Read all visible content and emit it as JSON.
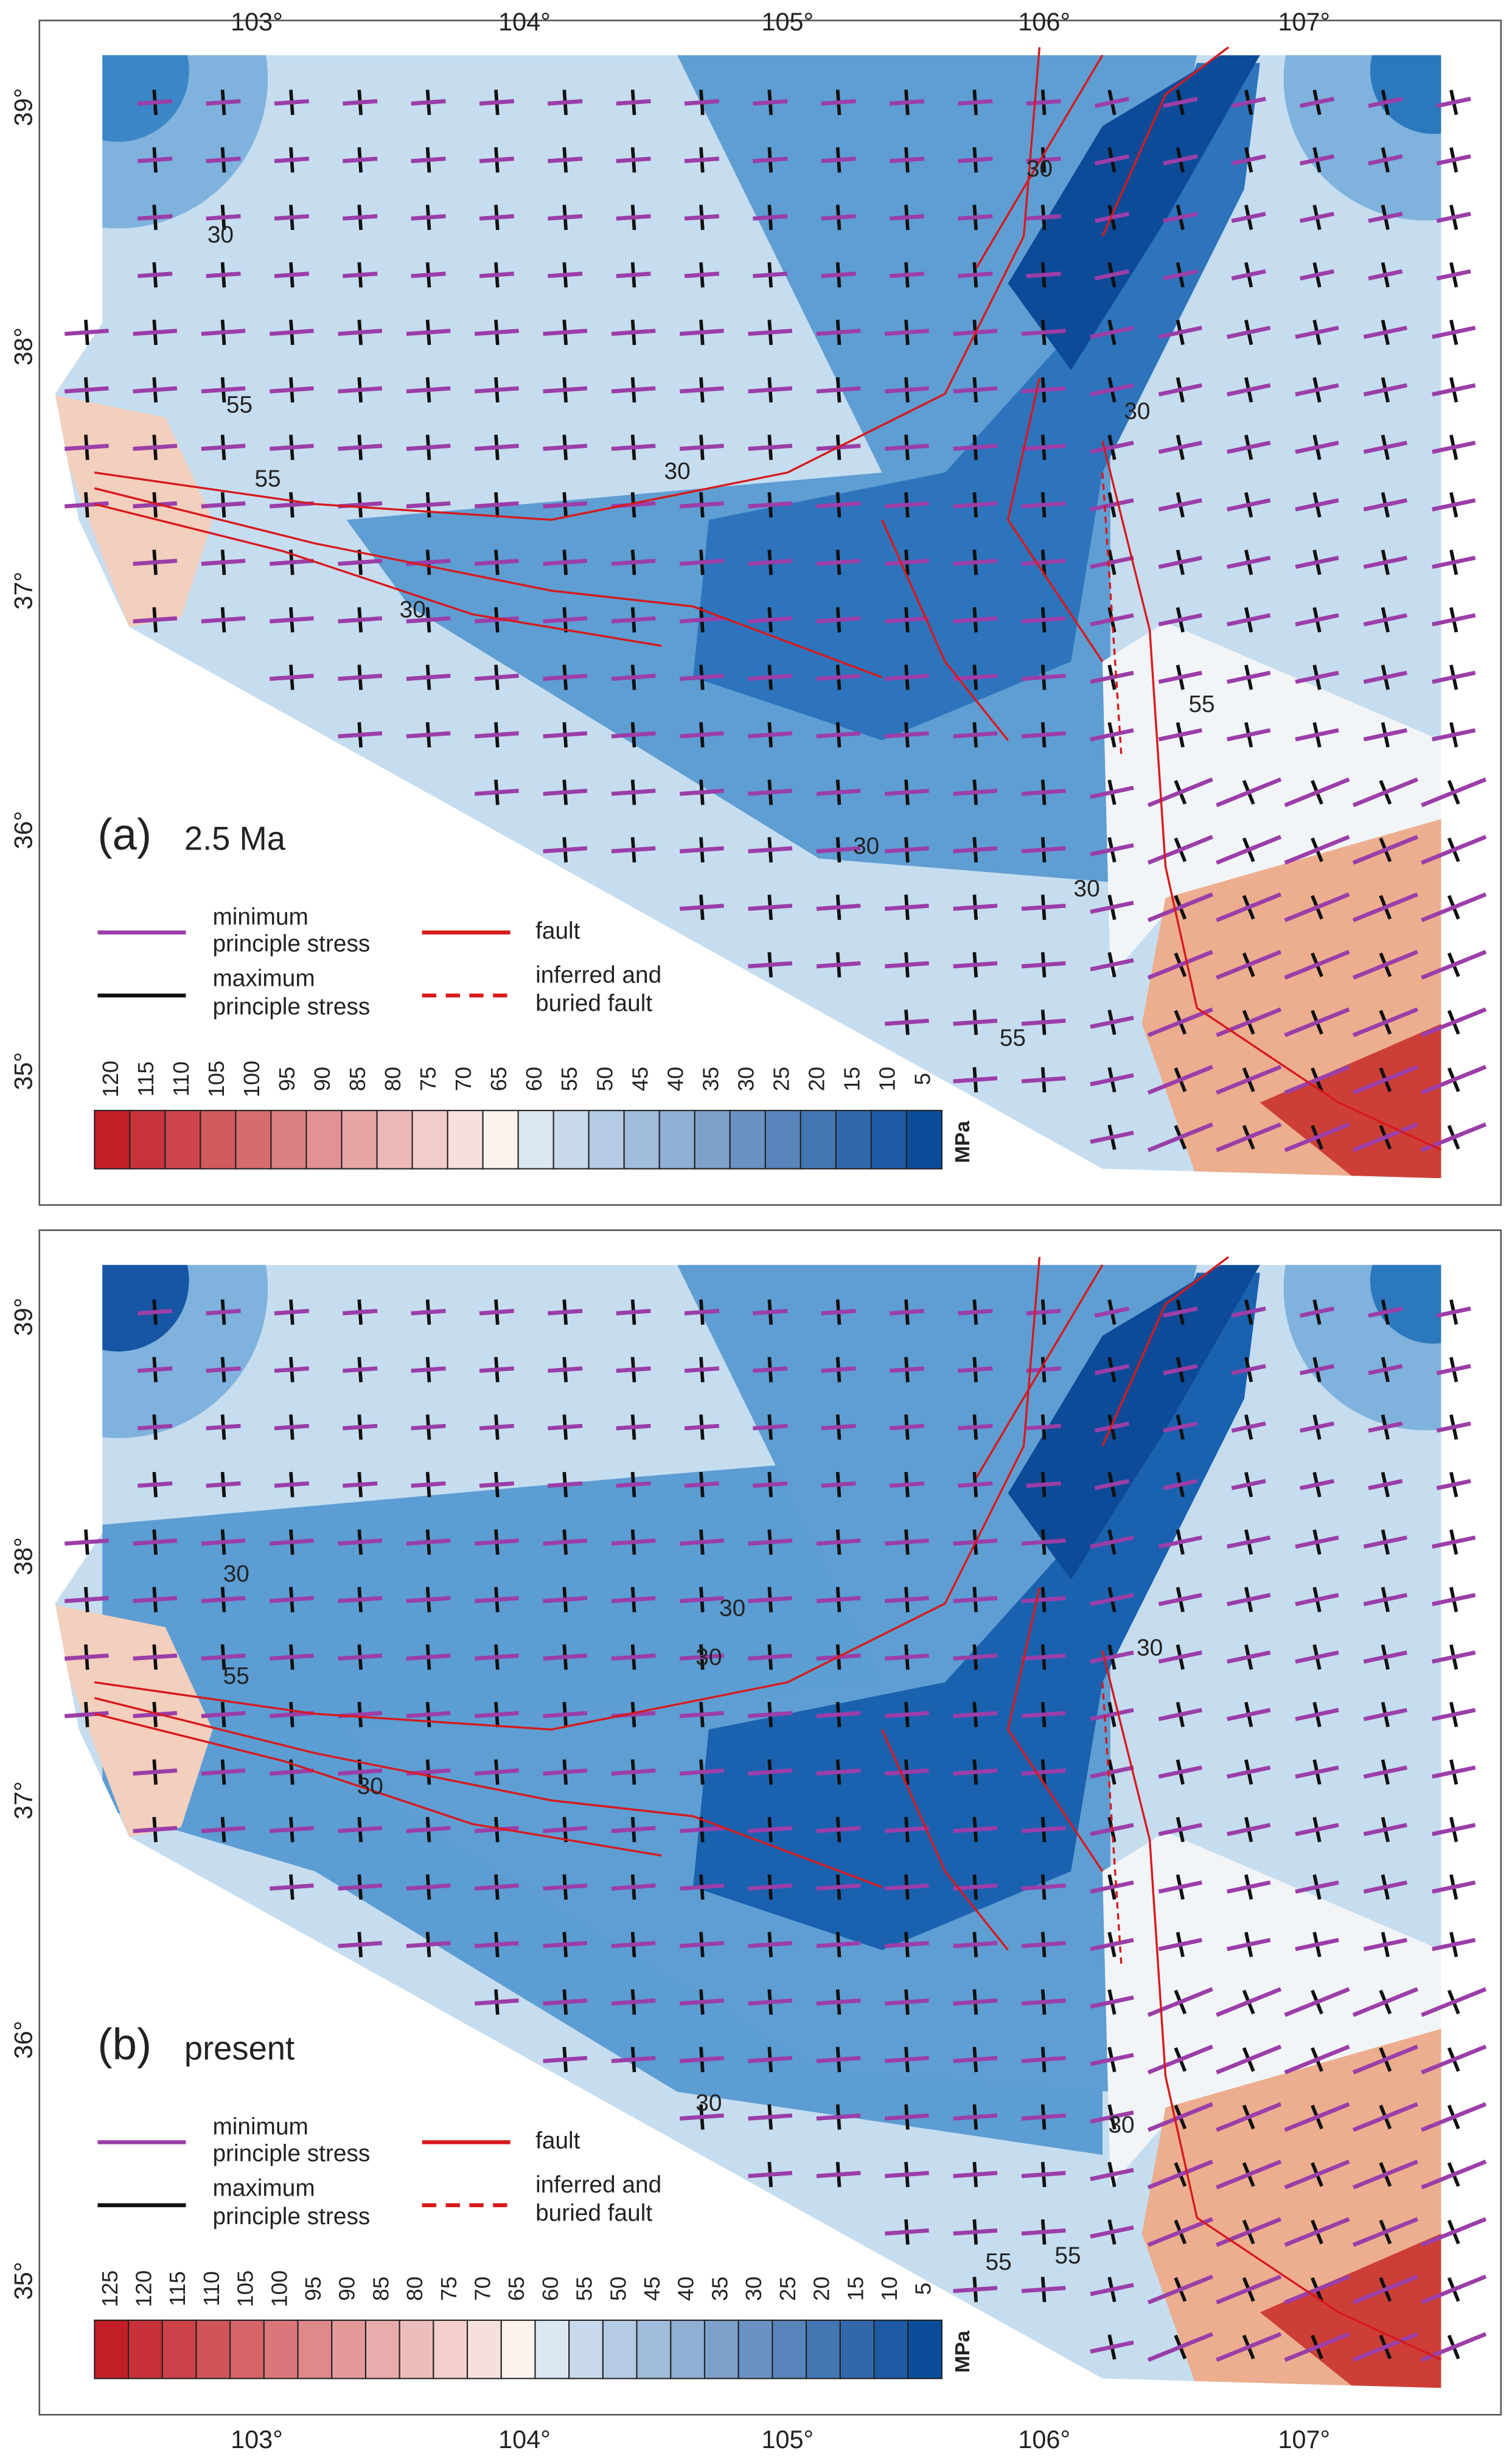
{
  "axes": {
    "x_ticks": [
      "103°",
      "104°",
      "105°",
      "106°",
      "107°"
    ],
    "y_ticks": [
      "39°",
      "38°",
      "37°",
      "36°",
      "35°"
    ]
  },
  "legend": {
    "min_stress": [
      "minimum",
      "principle stress"
    ],
    "max_stress": [
      "maximum",
      "principle stress"
    ],
    "fault": "fault",
    "buried_fault": [
      "inferred and",
      "buried fault"
    ]
  },
  "panels": [
    {
      "label": "(a)",
      "time": "2.5 Ma",
      "contour_labels": [
        "30",
        "30",
        "30",
        "30",
        "30",
        "30",
        "30",
        "55",
        "55",
        "55",
        "55"
      ],
      "colorbar": {
        "unit": "MPa",
        "ticks": [
          120,
          115,
          110,
          105,
          100,
          95,
          90,
          85,
          80,
          75,
          70,
          65,
          60,
          55,
          50,
          45,
          40,
          35,
          30,
          25,
          20,
          15,
          10,
          5
        ]
      }
    },
    {
      "label": "(b)",
      "time": "present",
      "contour_labels": [
        "30",
        "30",
        "30",
        "30",
        "30",
        "30",
        "30",
        "55",
        "55",
        "55"
      ],
      "colorbar": {
        "unit": "MPa",
        "ticks": [
          125,
          120,
          115,
          110,
          105,
          100,
          95,
          90,
          85,
          80,
          75,
          70,
          65,
          60,
          55,
          50,
          45,
          40,
          35,
          30,
          25,
          20,
          15,
          10,
          5
        ]
      }
    }
  ]
}
